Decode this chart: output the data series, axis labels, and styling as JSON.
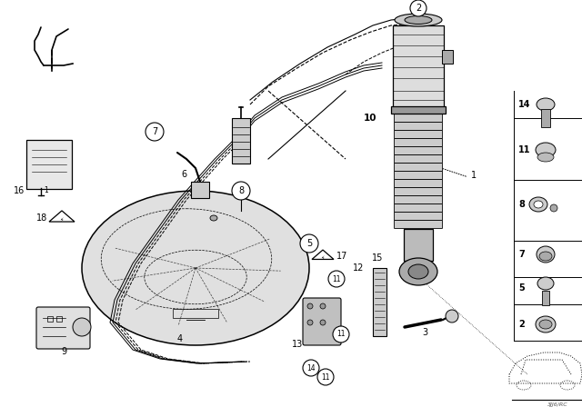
{
  "bg_color": "#ffffff",
  "line_color": "#000000",
  "fig_width": 6.4,
  "fig_height": 4.48,
  "dpi": 100,
  "watermark": "3JJ6/RC"
}
